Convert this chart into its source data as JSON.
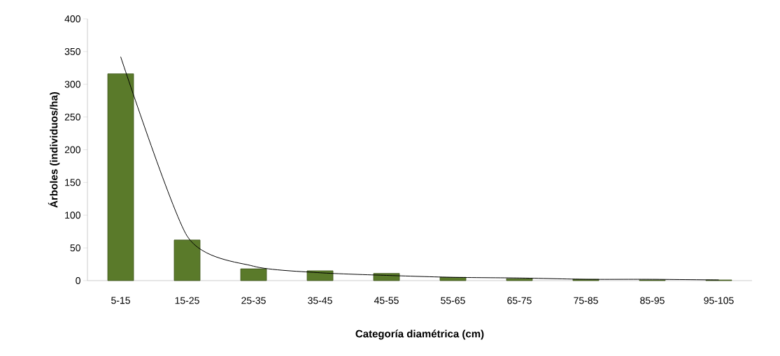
{
  "chart_data": {
    "type": "bar",
    "xlabel": "Categoría diamétrica (cm)",
    "ylabel": "Árboles (individuos/ha)",
    "categories": [
      "5-15",
      "15-25",
      "25-35",
      "35-45",
      "45-55",
      "55-65",
      "65-75",
      "75-85",
      "85-95",
      "95-105"
    ],
    "ylim": [
      0,
      400
    ],
    "yticks": [
      0,
      50,
      100,
      150,
      200,
      250,
      300,
      350,
      400
    ],
    "grid": false,
    "series": [
      {
        "color": "#5a7a2a",
        "values": [
          316,
          62,
          18,
          15,
          11,
          5,
          3,
          2,
          1,
          1
        ]
      },
      {
        "type": "line",
        "color": "#000000",
        "marker": "none",
        "line_style": "solid",
        "values": [
          342,
          68,
          22,
          12,
          8,
          5,
          4,
          2,
          2,
          1
        ]
      }
    ]
  }
}
